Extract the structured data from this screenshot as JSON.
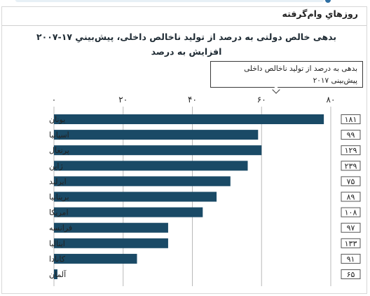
{
  "section": {
    "title": "روزهایِ وام‌گرفته"
  },
  "chart_data": {
    "type": "bar",
    "orientation": "horizontal",
    "title_line1": "بدهی خالص دولتی به درصد از تولید ناخالص داخلی، پیش‌بینیِ ۱۷-۲۰۰۷",
    "title_line2": "افزایش به درصد",
    "legend_line1": "بدهی به درصد از تولید ناخالص داخلی",
    "legend_line2": "پیش‌بینی ۲۰۱۷",
    "x_ticks": [
      "۰",
      "۲۰",
      "۴۰",
      "۶۰",
      "۸۰"
    ],
    "xlim": [
      0,
      80
    ],
    "grid": true,
    "categories": [
      "یونان",
      "اسپانیا",
      "پرتغال",
      "ژاپن",
      "ایرلند",
      "بریتانیا",
      "امریکا",
      "فرانسه",
      "ایتالیا",
      "کانادا",
      "آلمان"
    ],
    "values": [
      78,
      59,
      60,
      56,
      51,
      47,
      43,
      33,
      33,
      24,
      1
    ],
    "badges": [
      "۱۸۱",
      "۹۹",
      "۱۲۹",
      "۲۳۹",
      "۷۵",
      "۸۹",
      "۱۰۸",
      "۹۷",
      "۱۳۳",
      "۹۱",
      "۶۵"
    ],
    "colors": {
      "bar": "#1a4a66",
      "grid": "#b9b9b9"
    }
  }
}
